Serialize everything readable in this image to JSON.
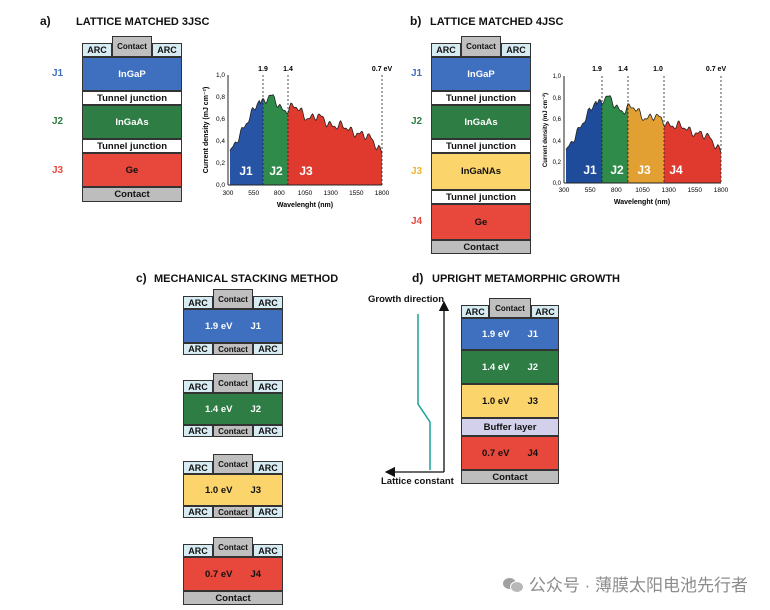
{
  "panel_a": {
    "label": "a)",
    "title": "LATTICE MATCHED 3JSC",
    "arc": "ARC",
    "contact_top": "Contact",
    "j_labels": [
      "J1",
      "J2",
      "J3"
    ],
    "layers": [
      "InGaP",
      "Tunnel junction",
      "InGaAs",
      "Tunnel junction",
      "Ge",
      "Contact"
    ],
    "chart": {
      "ylabel": "Current density (mJ cm⁻²)",
      "xlabel": "Wavelenght (nm)",
      "yticks": [
        "0,0",
        "0,2",
        "0,4",
        "0,6",
        "0,8",
        "1,0"
      ],
      "xticks": [
        "300",
        "550",
        "800",
        "1050",
        "1300",
        "1550",
        "1800"
      ],
      "bandgaps": [
        "1.9",
        "1.4",
        "0.7 eV"
      ],
      "regions": [
        "J1",
        "J2",
        "J3"
      ]
    }
  },
  "panel_b": {
    "label": "b)",
    "title": "LATTICE MATCHED 4JSC",
    "arc": "ARC",
    "contact_top": "Contact",
    "j_labels": [
      "J1",
      "J2",
      "J3",
      "J4"
    ],
    "layers": [
      "InGaP",
      "Tunnel junction",
      "InGaAs",
      "Tunnel junction",
      "InGaNAs",
      "Tunnel junction",
      "Ge",
      "Contact"
    ],
    "chart": {
      "ylabel": "Current density (mJ cm⁻²)",
      "xlabel": "Wavelenght (nm)",
      "yticks": [
        "0,0",
        "0,2",
        "0,4",
        "0,6",
        "0,8",
        "1,0"
      ],
      "xticks": [
        "300",
        "550",
        "800",
        "1050",
        "1300",
        "1550",
        "1800"
      ],
      "bandgaps": [
        "1.9",
        "1.4",
        "1.0",
        "0.7 eV"
      ],
      "regions": [
        "J1",
        "J2",
        "J3",
        "J4"
      ]
    }
  },
  "panel_c": {
    "label": "c)",
    "title": "MECHANICAL STACKING METHOD",
    "arc": "ARC",
    "contact": "Contact",
    "cells": [
      {
        "ev": "1.9 eV",
        "j": "J1"
      },
      {
        "ev": "1.4 eV",
        "j": "J2"
      },
      {
        "ev": "1.0 eV",
        "j": "J3"
      },
      {
        "ev": "0.7 eV",
        "j": "J4"
      }
    ],
    "bottom_contact": "Contact"
  },
  "panel_d": {
    "label": "d)",
    "title": "UPRIGHT METAMORPHIC GROWTH",
    "growth_direction": "Growth direction",
    "lattice_constant": "Lattice constant",
    "arc": "ARC",
    "contact_top": "Contact",
    "cells": [
      {
        "ev": "1.9 eV",
        "j": "J1"
      },
      {
        "ev": "1.4 eV",
        "j": "J2"
      },
      {
        "ev": "1.0 eV",
        "j": "J3"
      }
    ],
    "buffer": "Buffer layer",
    "last_cell": {
      "ev": "0.7 eV",
      "j": "J4"
    },
    "bottom_contact": "Contact"
  },
  "watermark": "公众号 · 薄膜太阳电池先行者",
  "colors": {
    "j1": "#3f6fbf",
    "j2": "#2e7d44",
    "j3": "#fbd46b",
    "j4": "#e8473b"
  }
}
